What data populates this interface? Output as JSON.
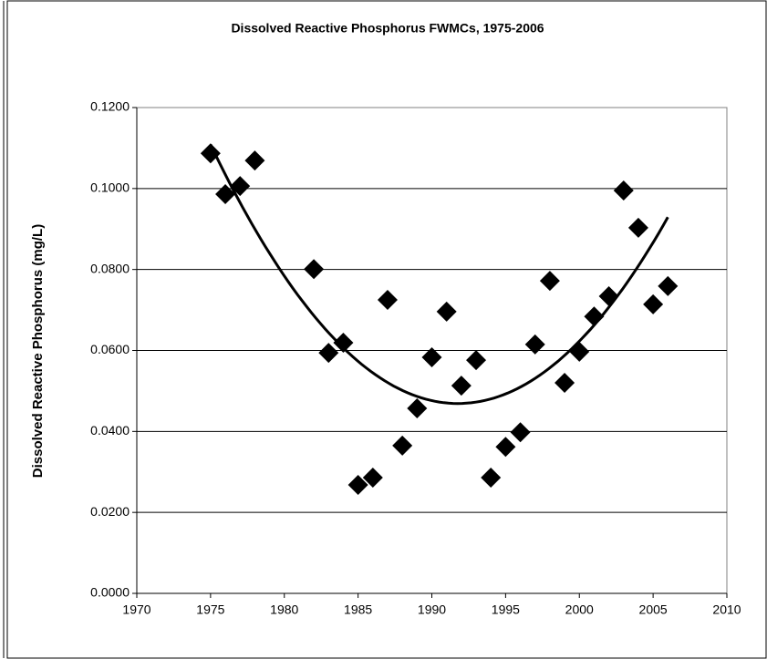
{
  "chart_data": {
    "type": "scatter",
    "title": "Dissolved Reactive Phosphorus FWMCs, 1975-2006",
    "y_label": "Dissolved Reactive Phosphorus (mg/L)",
    "x": [
      1975,
      1976,
      1977,
      1978,
      1982,
      1983,
      1984,
      1985,
      1986,
      1987,
      1988,
      1989,
      1990,
      1991,
      1992,
      1993,
      1994,
      1995,
      1996,
      1997,
      1998,
      1999,
      2000,
      2001,
      2002,
      2003,
      2004,
      2005,
      2006
    ],
    "series": [
      {
        "color": "#000000",
        "values": [
          0.1087,
          0.0986,
          0.1006,
          0.1069,
          0.0801,
          0.0594,
          0.0619,
          0.0268,
          0.0286,
          0.0725,
          0.0365,
          0.0457,
          0.0583,
          0.0696,
          0.0513,
          0.0576,
          0.0286,
          0.0362,
          0.0398,
          0.0615,
          0.0772,
          0.052,
          0.0597,
          0.0684,
          0.0734,
          0.0995,
          0.0903,
          0.0714,
          0.0759
        ]
      }
    ],
    "trendline": "polynomial",
    "xlim": [
      1970,
      2010
    ],
    "xticks": [
      1970,
      1975,
      1980,
      1985,
      1990,
      1995,
      2000,
      2005,
      2010
    ],
    "ylim": [
      0,
      0.12
    ],
    "yticks": [
      {
        "value": 0,
        "label": "0.0000"
      },
      {
        "value": 0.02,
        "label": "0.0200"
      },
      {
        "value": 0.04,
        "label": "0.0400"
      },
      {
        "value": 0.06,
        "label": "0.0600"
      },
      {
        "value": 0.08,
        "label": "0.0800"
      },
      {
        "value": 0.1,
        "label": "0.1000"
      },
      {
        "value": 0.12,
        "label": "0.1200"
      }
    ],
    "grid": true
  }
}
